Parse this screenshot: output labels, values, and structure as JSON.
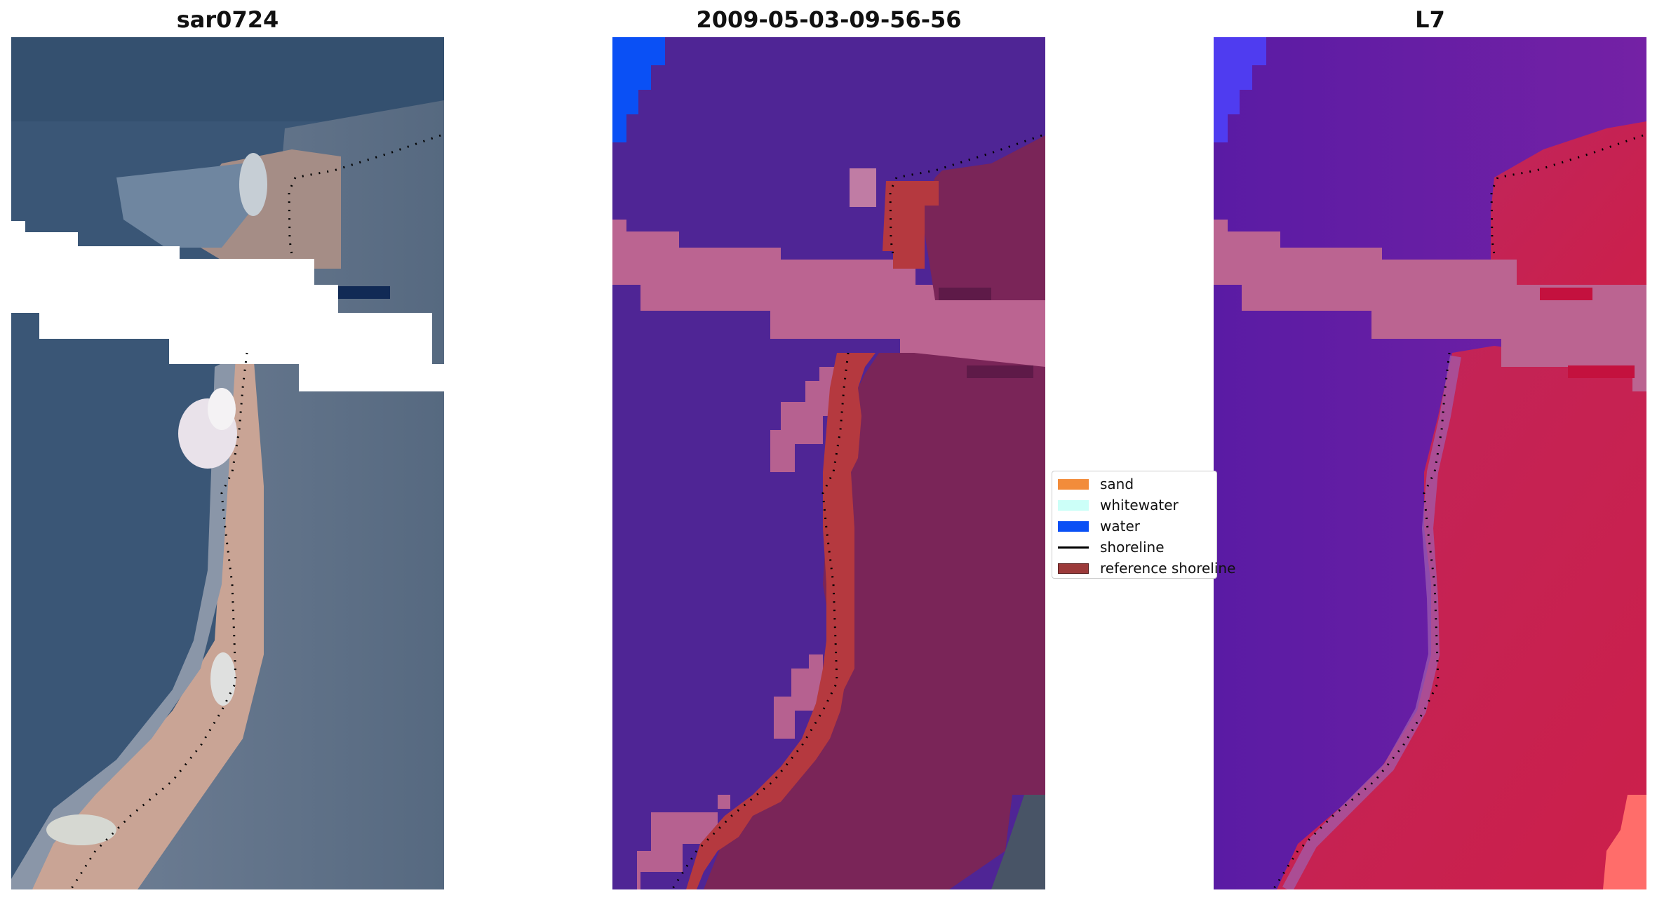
{
  "panels": [
    {
      "title": "sar0724"
    },
    {
      "title": "2009-05-03-09-56-56"
    },
    {
      "title": "L7"
    }
  ],
  "legend": {
    "items": [
      {
        "label": "sand",
        "color": "#f28c3b"
      },
      {
        "label": "whitewater",
        "color": "#ccfff8"
      },
      {
        "label": "water",
        "color": "#0a50f5"
      },
      {
        "label": "shoreline",
        "color": "#000000"
      },
      {
        "label": "reference shoreline",
        "color": "#9c3a3a"
      }
    ]
  },
  "colors": {
    "rgb_water": "#3a5676",
    "rgb_sand": "#c9a495",
    "class_water": "#4f2595",
    "class_sand_overlay": "#7a2558",
    "class_buffer": "#bb6491",
    "class_reference": "#b5393f",
    "nir_water": "#6a1ea6",
    "nir_land": "#c8234f"
  }
}
